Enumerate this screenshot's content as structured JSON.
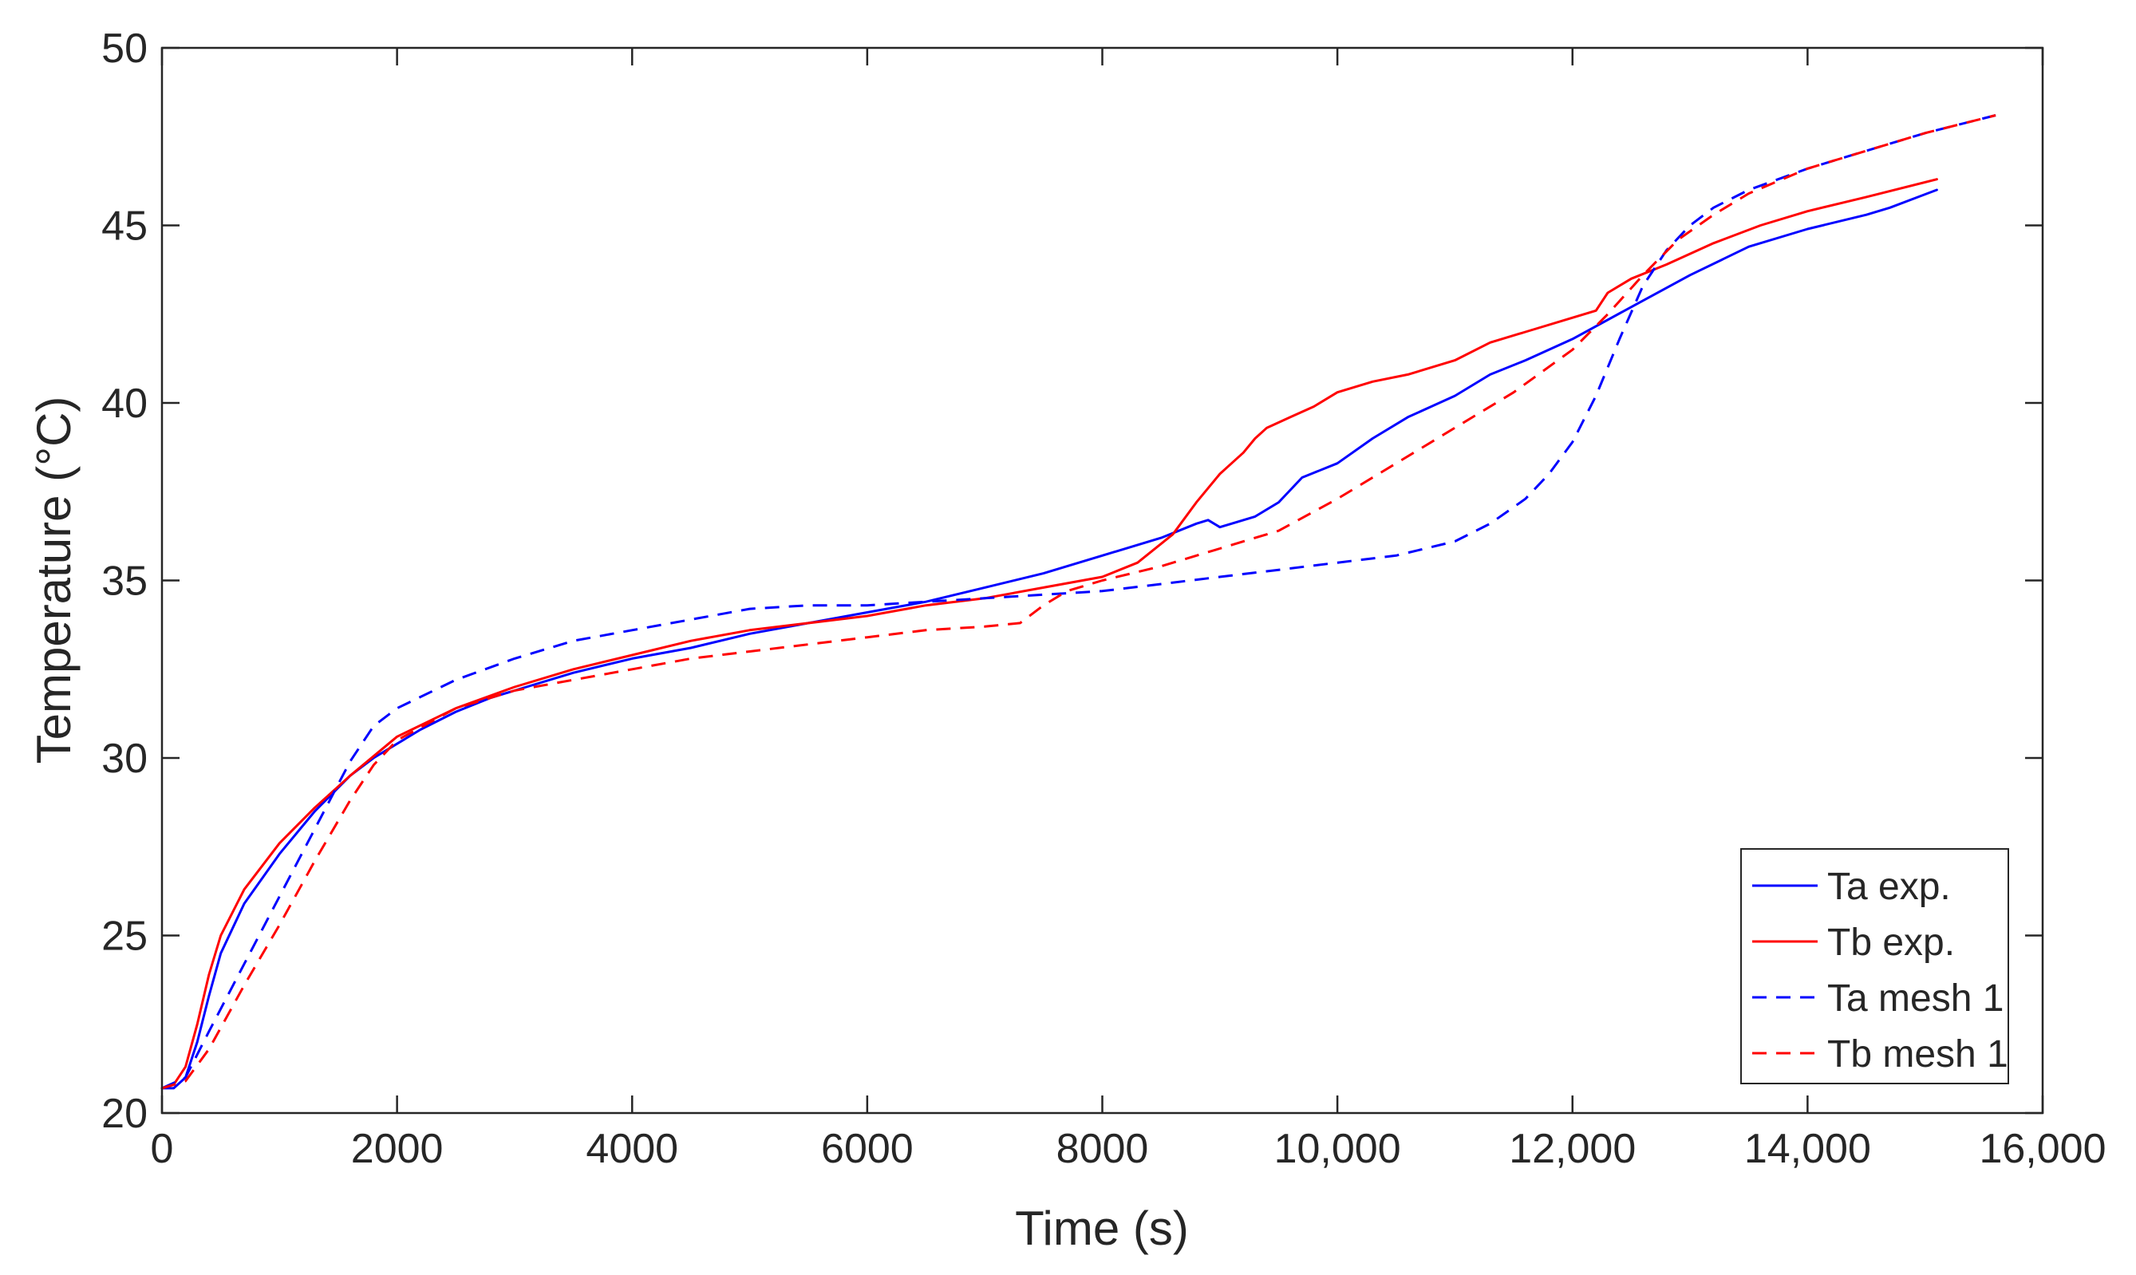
{
  "chart_data": {
    "type": "line",
    "xlabel": "Time (s)",
    "ylabel": "Temperature (°C)",
    "xlim": [
      0,
      16000
    ],
    "ylim": [
      20,
      50
    ],
    "xticks": [
      0,
      2000,
      4000,
      6000,
      8000,
      10000,
      12000,
      14000,
      16000
    ],
    "xtick_labels": [
      "0",
      "2000",
      "4000",
      "6000",
      "8000",
      "10,000",
      "12,000",
      "14,000",
      "16,000"
    ],
    "yticks": [
      20,
      25,
      30,
      35,
      40,
      45,
      50
    ],
    "ytick_labels": [
      "20",
      "25",
      "30",
      "35",
      "40",
      "45",
      "50"
    ],
    "grid": false,
    "legend_position": "bottom-right",
    "series": [
      {
        "name": "Ta exp.",
        "color": "#0000ff",
        "style": "solid",
        "x": [
          0,
          100,
          200,
          300,
          400,
          500,
          700,
          1000,
          1300,
          1600,
          1800,
          2000,
          2200,
          2500,
          2800,
          3000,
          3500,
          4000,
          4500,
          5000,
          5500,
          6000,
          6500,
          7000,
          7500,
          8000,
          8500,
          8800,
          8900,
          9000,
          9100,
          9300,
          9500,
          9700,
          10000,
          10300,
          10600,
          11000,
          11300,
          11600,
          12000,
          12500,
          13000,
          13500,
          14000,
          14500,
          14700,
          15100
        ],
        "y": [
          20.7,
          20.7,
          21.0,
          22.0,
          23.3,
          24.5,
          25.9,
          27.3,
          28.5,
          29.5,
          30.0,
          30.4,
          30.8,
          31.3,
          31.7,
          31.9,
          32.4,
          32.8,
          33.1,
          33.5,
          33.8,
          34.1,
          34.4,
          34.8,
          35.2,
          35.7,
          36.2,
          36.6,
          36.7,
          36.5,
          36.6,
          36.8,
          37.2,
          37.9,
          38.3,
          39.0,
          39.6,
          40.2,
          40.8,
          41.2,
          41.8,
          42.7,
          43.6,
          44.4,
          44.9,
          45.3,
          45.5,
          46.0
        ]
      },
      {
        "name": "Tb exp.",
        "color": "#ff0000",
        "style": "solid",
        "x": [
          0,
          100,
          200,
          300,
          400,
          500,
          700,
          1000,
          1300,
          1600,
          2000,
          2500,
          3000,
          3500,
          4000,
          4500,
          5000,
          5500,
          6000,
          6500,
          7000,
          7500,
          8000,
          8300,
          8600,
          8800,
          8900,
          9000,
          9100,
          9200,
          9300,
          9400,
          9600,
          9800,
          10000,
          10300,
          10600,
          11000,
          11300,
          11600,
          12000,
          12200,
          12300,
          12500,
          12800,
          13200,
          13600,
          14000,
          14500,
          15100
        ],
        "y": [
          20.7,
          20.8,
          21.3,
          22.5,
          23.9,
          25.0,
          26.3,
          27.6,
          28.6,
          29.5,
          30.6,
          31.4,
          32.0,
          32.5,
          32.9,
          33.3,
          33.6,
          33.8,
          34.0,
          34.3,
          34.5,
          34.8,
          35.1,
          35.5,
          36.3,
          37.2,
          37.6,
          38.0,
          38.3,
          38.6,
          39.0,
          39.3,
          39.6,
          39.9,
          40.3,
          40.6,
          40.8,
          41.2,
          41.7,
          42.0,
          42.4,
          42.6,
          43.1,
          43.5,
          43.9,
          44.5,
          45.0,
          45.4,
          45.8,
          46.3
        ]
      },
      {
        "name": "Ta mesh 1",
        "color": "#0000ff",
        "style": "dashed",
        "x": [
          0,
          200,
          400,
          700,
          1000,
          1300,
          1600,
          1800,
          2000,
          2500,
          3000,
          3500,
          4000,
          4500,
          5000,
          5500,
          6000,
          6500,
          7000,
          7500,
          8000,
          8500,
          9000,
          9500,
          10000,
          10500,
          11000,
          11300,
          11600,
          11800,
          12000,
          12200,
          12400,
          12600,
          12800,
          13000,
          13200,
          13500,
          14000,
          14500,
          15000,
          15600
        ],
        "y": [
          20.7,
          21.0,
          22.3,
          24.2,
          26.1,
          28.0,
          29.9,
          30.9,
          31.4,
          32.2,
          32.8,
          33.3,
          33.6,
          33.9,
          34.2,
          34.3,
          34.3,
          34.4,
          34.5,
          34.6,
          34.7,
          34.9,
          35.1,
          35.3,
          35.5,
          35.7,
          36.1,
          36.6,
          37.3,
          38.0,
          38.9,
          40.2,
          41.8,
          43.3,
          44.3,
          45.0,
          45.5,
          46.0,
          46.6,
          47.1,
          47.6,
          48.1
        ]
      },
      {
        "name": "Tb mesh 1",
        "color": "#ff0000",
        "style": "dashed",
        "x": [
          0,
          200,
          400,
          700,
          1000,
          1300,
          1600,
          1800,
          2000,
          2500,
          3000,
          3500,
          4000,
          4500,
          5000,
          5500,
          6000,
          6500,
          7000,
          7300,
          7500,
          7700,
          8000,
          8500,
          9000,
          9500,
          10000,
          10500,
          11000,
          11500,
          12000,
          12300,
          12600,
          12900,
          13200,
          13500,
          14000,
          14500,
          15000,
          15600
        ],
        "y": [
          20.7,
          20.9,
          21.8,
          23.6,
          25.3,
          27.1,
          28.8,
          29.8,
          30.5,
          31.4,
          31.9,
          32.2,
          32.5,
          32.8,
          33.0,
          33.2,
          33.4,
          33.6,
          33.7,
          33.8,
          34.3,
          34.7,
          35.0,
          35.4,
          35.9,
          36.4,
          37.3,
          38.3,
          39.3,
          40.3,
          41.5,
          42.5,
          43.6,
          44.6,
          45.3,
          45.9,
          46.6,
          47.1,
          47.6,
          48.1
        ]
      }
    ]
  }
}
